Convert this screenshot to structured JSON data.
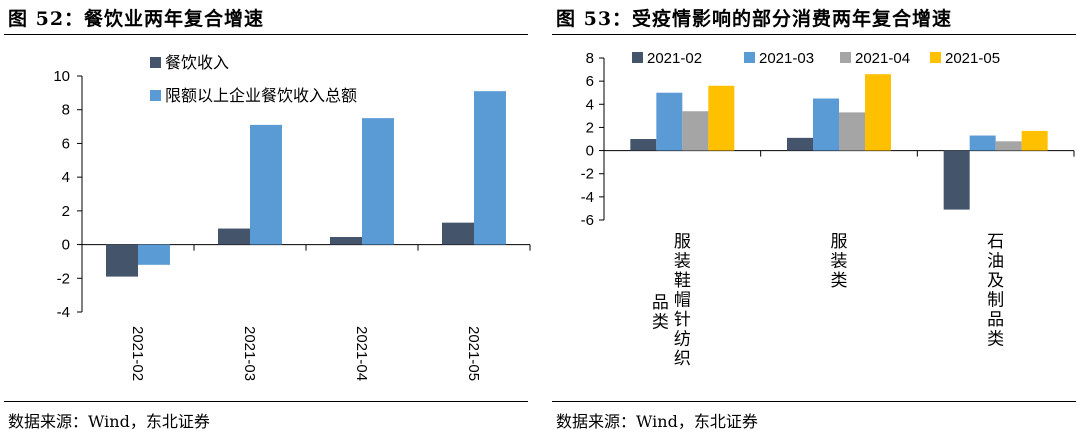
{
  "figures": [
    {
      "title": "图 52：餐饮业两年复合增速",
      "source": "数据来源：Wind，东北证券"
    },
    {
      "title": "图 53：受疫情影响的部分消费两年复合增速",
      "source": "数据来源：Wind，东北证券"
    }
  ],
  "colors": {
    "series_dark": "#44546A",
    "series_blue": "#5B9BD5",
    "series_gray": "#A5A5A5",
    "series_yellow": "#FFC000"
  },
  "chart_data": [
    {
      "type": "bar",
      "title": "",
      "xlabel": "",
      "ylabel": "",
      "categories": [
        "2021-02",
        "2021-03",
        "2021-04",
        "2021-05"
      ],
      "series": [
        {
          "name": "餐饮收入",
          "values": [
            -1.9,
            0.95,
            0.45,
            1.3
          ]
        },
        {
          "name": "限额以上企业餐饮收入总额",
          "values": [
            -1.2,
            7.1,
            7.5,
            9.1
          ]
        }
      ],
      "ylim": [
        -4,
        10
      ],
      "yticks": [
        -4,
        -2,
        0,
        2,
        4,
        6,
        8,
        10
      ],
      "grid": false,
      "legend": "top-left"
    },
    {
      "type": "bar",
      "title": "",
      "xlabel": "",
      "ylabel": "",
      "categories": [
        "服装鞋帽针纺织品类",
        "服装类",
        "石油及制品类"
      ],
      "series": [
        {
          "name": "2021-02",
          "values": [
            1.0,
            1.1,
            -5.1
          ]
        },
        {
          "name": "2021-03",
          "values": [
            5.0,
            4.5,
            1.3
          ]
        },
        {
          "name": "2021-04",
          "values": [
            3.4,
            3.3,
            0.8
          ]
        },
        {
          "name": "2021-05",
          "values": [
            5.6,
            6.6,
            1.7
          ]
        }
      ],
      "ylim": [
        -6,
        8
      ],
      "yticks": [
        -6,
        -4,
        -2,
        0,
        2,
        4,
        6,
        8
      ],
      "grid": false,
      "legend": "top"
    }
  ]
}
